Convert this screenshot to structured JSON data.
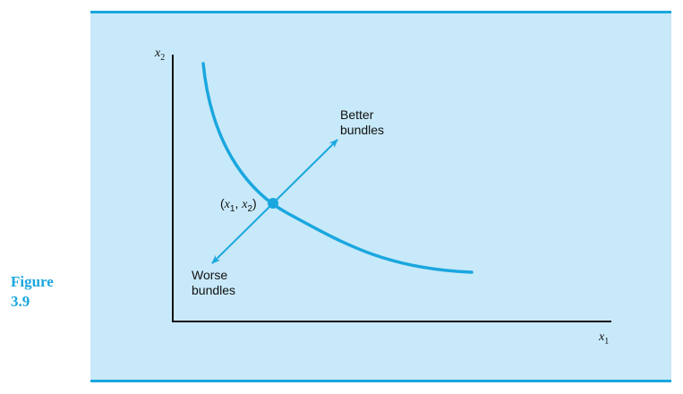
{
  "figure": {
    "label_word": "Figure",
    "label_number": "3.9"
  },
  "diagram": {
    "y_axis_label": {
      "var": "x",
      "sub": "2"
    },
    "x_axis_label": {
      "var": "x",
      "sub": "1"
    },
    "better_label": [
      "Better",
      "bundles"
    ],
    "worse_label": [
      "Worse",
      "bundles"
    ],
    "point_label": {
      "open": "(",
      "var1": "x",
      "sub1": "1",
      "sep": ", ",
      "var2": "x",
      "sub2": "2",
      "close": ")"
    }
  },
  "colors": {
    "accent": "#1aa7df",
    "panel": "#c8e9f9",
    "axis": "#111111"
  }
}
